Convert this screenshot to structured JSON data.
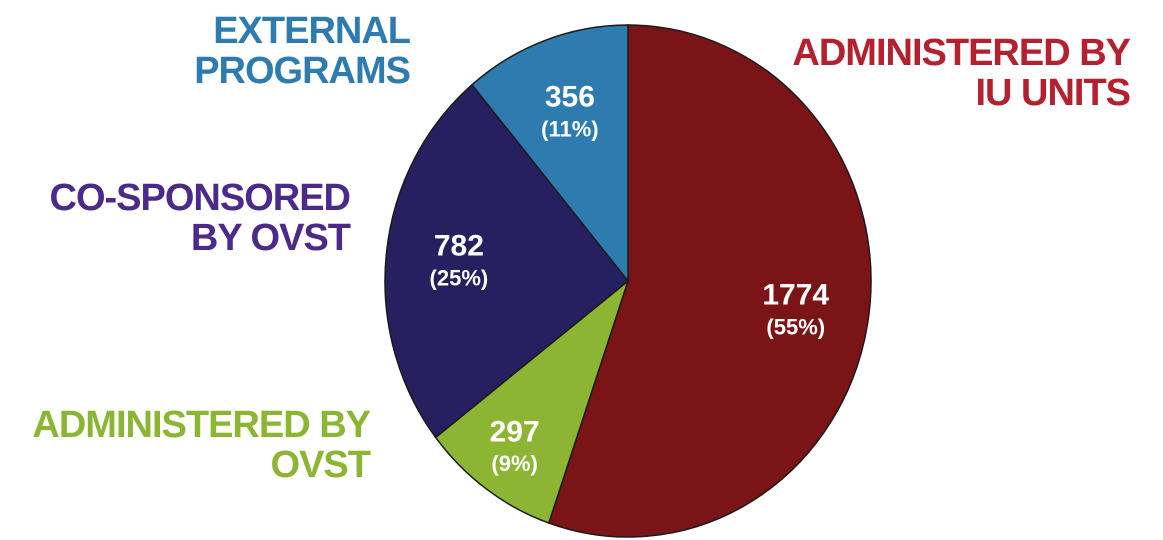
{
  "chart_data": {
    "type": "pie",
    "categories": [
      [
        "ADMINISTERED BY",
        "IU UNITS"
      ],
      [
        "ADMINISTERED BY",
        "OVST"
      ],
      [
        "CO-SPONSORED",
        "BY OVST"
      ],
      [
        "EXTERNAL",
        "PROGRAMS"
      ]
    ],
    "values": [
      1774,
      297,
      782,
      356
    ],
    "shares": [
      55,
      9,
      25,
      11
    ],
    "share_labels": [
      "(55%)",
      "(9%)",
      "(25%)",
      "(11%)"
    ],
    "colors": [
      "#7b1416",
      "#8db534",
      "#262060",
      "#2e7bb0"
    ],
    "label_colors": [
      "#b2212d",
      "#8db534",
      "#4b2a8a",
      "#2e7bb0"
    ]
  }
}
